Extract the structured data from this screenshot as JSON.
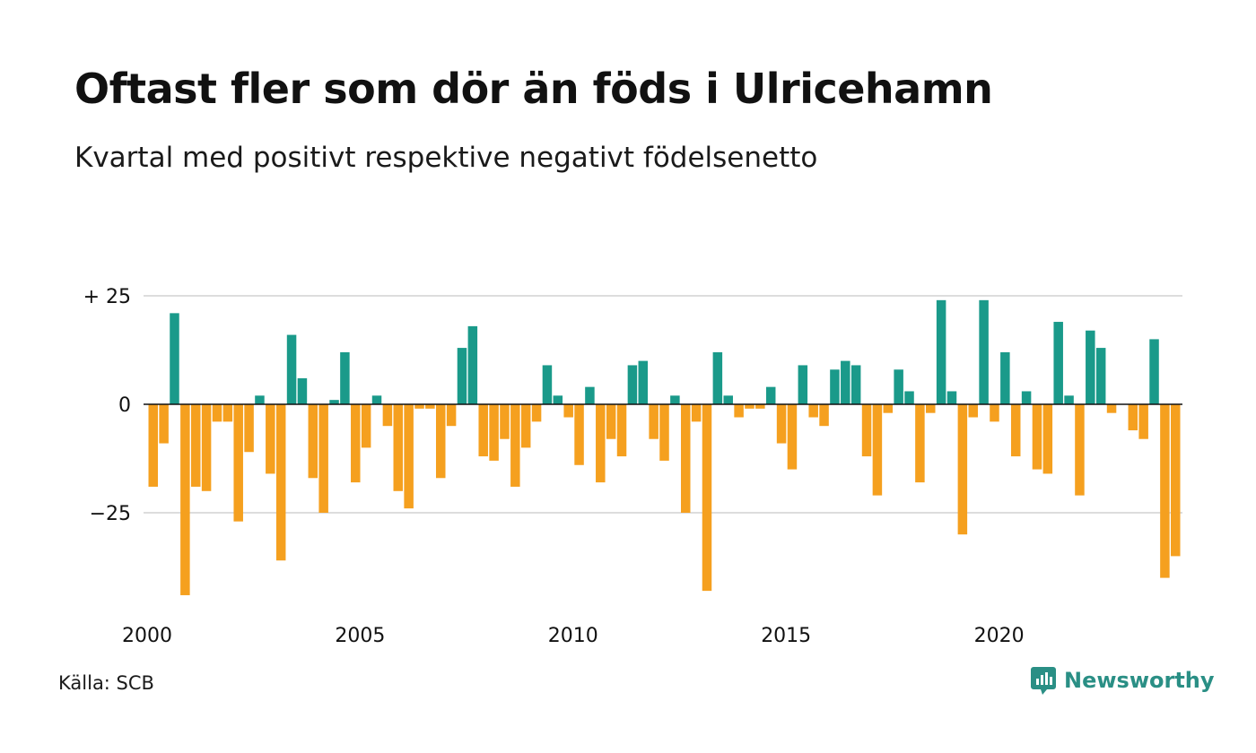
{
  "title": "Oftast fler som dör än föds i Ulricehamn",
  "subtitle": "Kvartal med positivt respektive negativt födelsenetto",
  "source": "Källa: SCB",
  "brand": {
    "name": "Newsworthy",
    "icon": "newsworthy-logo-icon",
    "color": "#2a8f85"
  },
  "colors": {
    "positive": "#1a9a8a",
    "negative": "#f5a01f",
    "grid": "#dddddd",
    "zero": "#111111"
  },
  "chart_data": {
    "type": "bar",
    "title": "Oftast fler som dör än föds i Ulricehamn",
    "subtitle": "Kvartal med positivt respektive negativt födelsenetto",
    "xlabel": "",
    "ylabel": "",
    "ylim": [
      -45,
      25
    ],
    "y_ticks": [
      {
        "value": 25,
        "label": "+ 25"
      },
      {
        "value": 0,
        "label": "0"
      },
      {
        "value": -25,
        "label": "−25"
      }
    ],
    "x_ticks": [
      {
        "value": 2000,
        "label": "2000"
      },
      {
        "value": 2005,
        "label": "2005"
      },
      {
        "value": 2010,
        "label": "2010"
      },
      {
        "value": 2015,
        "label": "2015"
      },
      {
        "value": 2020,
        "label": "2020"
      }
    ],
    "x_start": "2000 Q1",
    "grid": true,
    "legend": "none",
    "values": [
      -19,
      -9,
      21,
      -44,
      -19,
      -20,
      -4,
      -4,
      -27,
      -11,
      2,
      -16,
      -36,
      16,
      6,
      -17,
      -25,
      1,
      12,
      -18,
      -10,
      2,
      -5,
      -20,
      -24,
      -1,
      -1,
      -17,
      -5,
      13,
      18,
      -12,
      -13,
      -8,
      -19,
      -10,
      -4,
      9,
      2,
      -3,
      -14,
      4,
      -18,
      -8,
      -12,
      9,
      10,
      -8,
      -13,
      2,
      -25,
      -4,
      -43,
      12,
      2,
      -3,
      -1,
      -1,
      4,
      -9,
      -15,
      9,
      -3,
      -5,
      8,
      10,
      9,
      -12,
      -21,
      -2,
      8,
      3,
      -18,
      -2,
      24,
      3,
      -30,
      -3,
      24,
      -4,
      12,
      -12,
      3,
      -15,
      -16,
      19,
      2,
      -21,
      17,
      13,
      -2,
      0,
      -6,
      -8,
      15,
      -40,
      -35
    ]
  }
}
